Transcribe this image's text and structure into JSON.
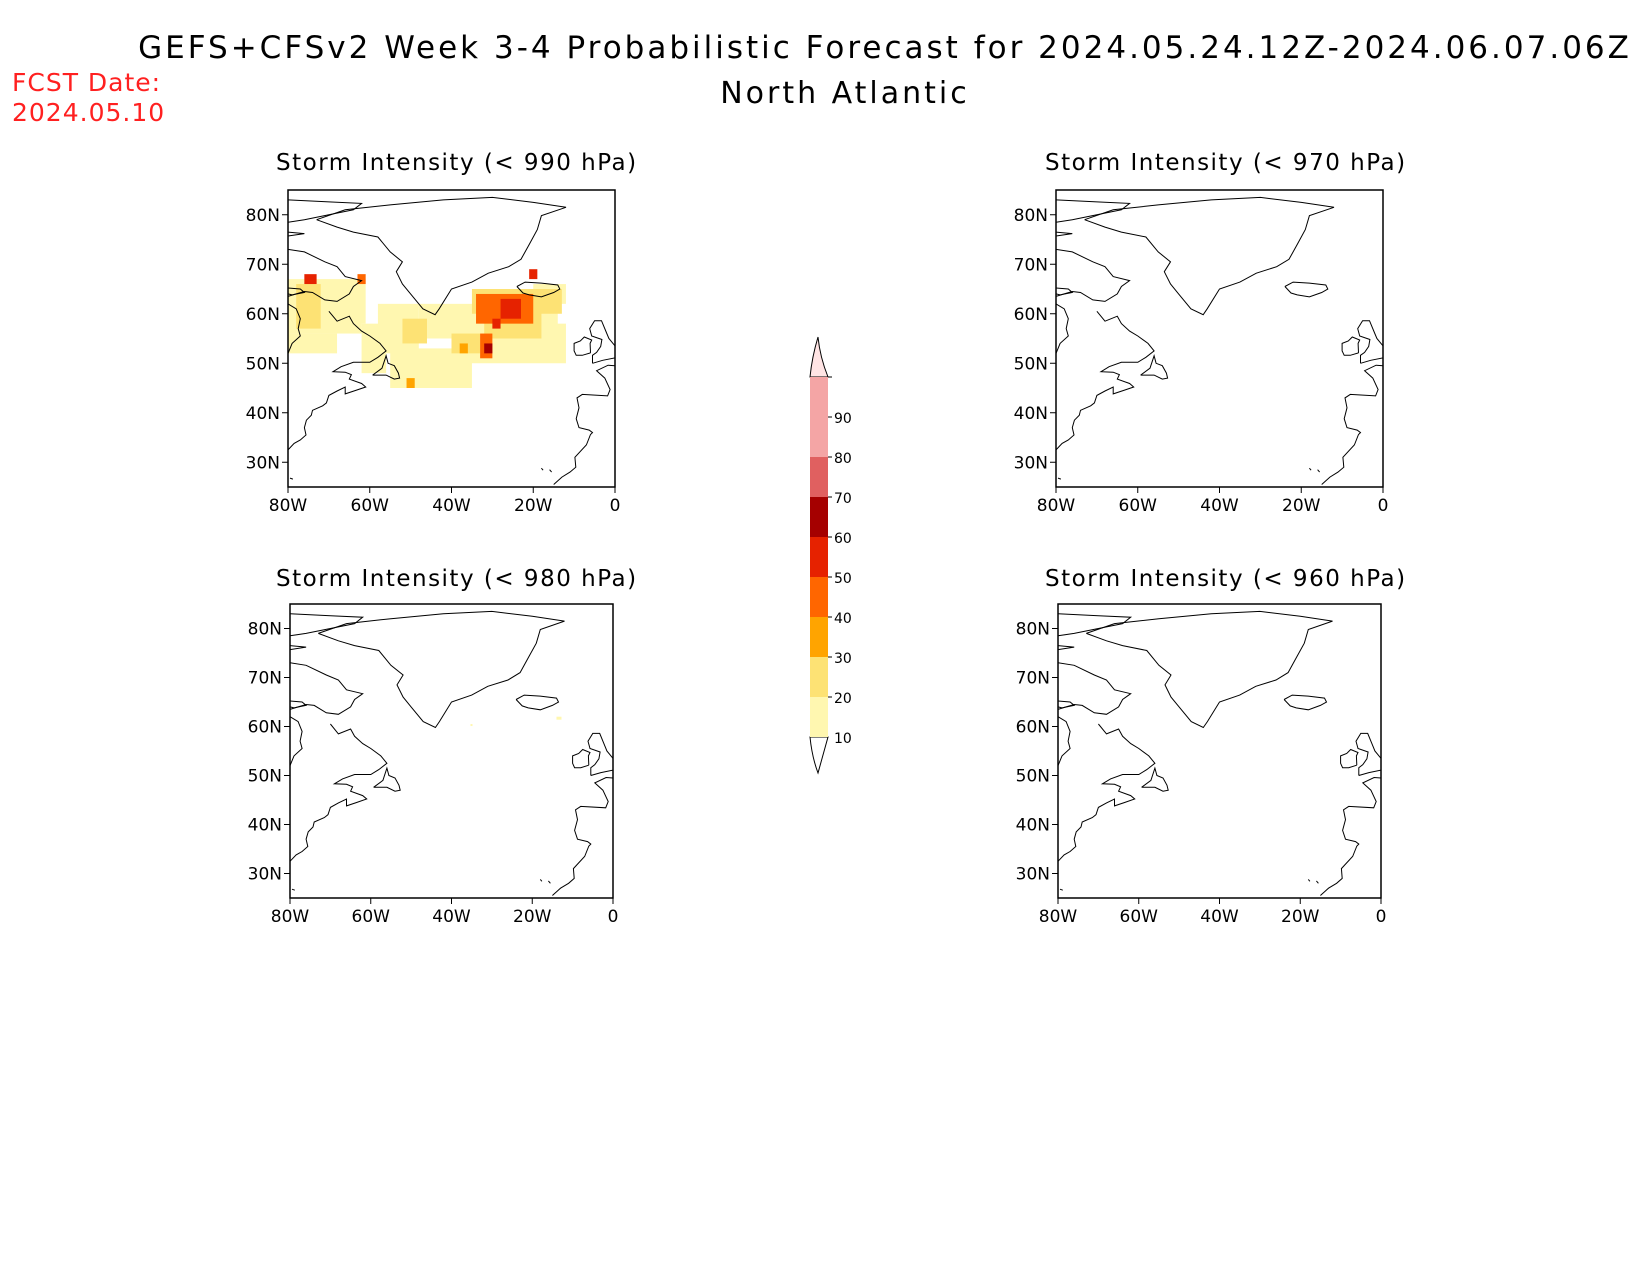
{
  "header": {
    "title": "GEFS+CFSv2 Week 3-4 Probabilistic Forecast for 2024.05.24.12Z-2024.06.07.06Z",
    "subtitle": "North Atlantic",
    "fcst_label": "FCST Date:",
    "fcst_value": "2024.05.10"
  },
  "panels": [
    {
      "title": "Storm Intensity (< 990 hPa)",
      "has_field": true
    },
    {
      "title": "Storm Intensity (< 970 hPa)",
      "has_field": false
    },
    {
      "title": "Storm Intensity (< 980 hPa)",
      "has_field": false,
      "sparse": true
    },
    {
      "title": "Storm Intensity (< 960 hPa)",
      "has_field": false
    }
  ],
  "axes": {
    "lat_labels": [
      "30N",
      "40N",
      "50N",
      "60N",
      "70N",
      "80N"
    ],
    "lat_values": [
      30,
      40,
      50,
      60,
      70,
      80
    ],
    "lon_labels": [
      "80W",
      "60W",
      "40W",
      "20W",
      "0"
    ],
    "lon_values": [
      -80,
      -60,
      -40,
      -20,
      0
    ],
    "lat_range": [
      25,
      85
    ],
    "lon_range": [
      -80,
      0
    ]
  },
  "colorbar": {
    "levels": [
      "10",
      "20",
      "30",
      "40",
      "50",
      "60",
      "70",
      "80",
      "90"
    ],
    "colors": [
      "#fff7b0",
      "#fde274",
      "#ffa400",
      "#ff6600",
      "#e62200",
      "#a50000",
      "#e06060",
      "#f4a5a5",
      "#ffe4e4"
    ]
  }
}
